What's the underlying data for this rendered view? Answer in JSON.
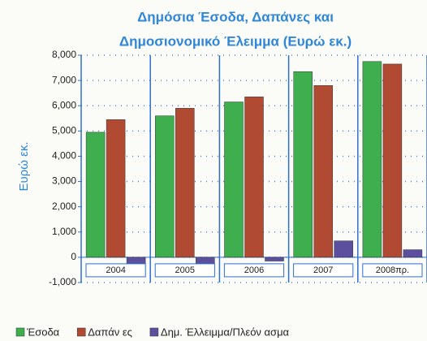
{
  "chart_data": {
    "type": "bar",
    "title": [
      "Δημόσια Έσοδα, Δαπάνες και",
      "Δημοσιονομικό  Έλειμμα (Ευρώ εκ.)"
    ],
    "y_label": "Ευρώ εκ.",
    "categories": [
      "2004",
      "2005",
      "2006",
      "2007",
      "2008πρ."
    ],
    "series": [
      {
        "name": "Έσοδα",
        "color": "#3fae4e",
        "values": [
          4950,
          5600,
          6150,
          7350,
          7750
        ]
      },
      {
        "name": "Δαπάν ες",
        "color": "#b04a32",
        "values": [
          5450,
          5900,
          6350,
          6800,
          7650
        ]
      },
      {
        "name": "Δημ. Έλλειμμα/Πλεόν ασμα",
        "color": "#5b4f9e",
        "values": [
          -480,
          -300,
          -150,
          650,
          300
        ]
      }
    ],
    "ylim": [
      -1000,
      8000
    ],
    "yticks": [
      {
        "value": -1000,
        "label": "-1,000"
      },
      0,
      {
        "value": 1000,
        "label": "1,000"
      },
      {
        "value": 2000,
        "label": "2,000"
      },
      {
        "value": 3000,
        "label": "3,000"
      },
      {
        "value": 4000,
        "label": "4,000"
      },
      {
        "value": 5000,
        "label": "5,000"
      },
      {
        "value": 6000,
        "label": "6,000"
      },
      {
        "value": 7000,
        "label": "7,000"
      },
      {
        "value": 8000,
        "label": "8,000"
      }
    ],
    "grid": true
  }
}
